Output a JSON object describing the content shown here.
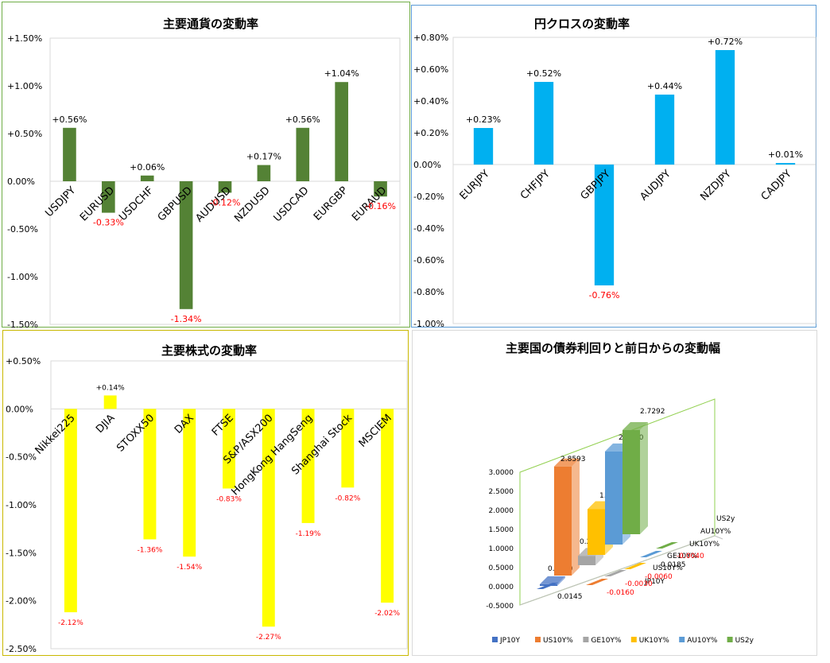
{
  "colors": {
    "currency_bar": "#548235",
    "cross_bar": "#00b0f0",
    "stock_bar": "#ffff00",
    "positive_label": "#000000",
    "negative_label": "#ff0000",
    "frame_green": "#70ad47",
    "frame_blue": "#5b9bd5",
    "frame_yellow": "#c9b800"
  },
  "chart_data": [
    {
      "type": "bar",
      "title": "主要通貨の変動率",
      "categories": [
        "USDJPY",
        "EURUSD",
        "USDCHF",
        "GBPUSD",
        "AUDUSD",
        "NZDUSD",
        "USDCAD",
        "EURGBP",
        "EURAUD"
      ],
      "values": [
        0.56,
        -0.33,
        0.06,
        -1.34,
        -0.12,
        0.17,
        0.56,
        1.04,
        -0.16
      ],
      "data_labels": [
        "+0.56%",
        "-0.33%",
        "+0.06%",
        "-1.34%",
        "-0.12%",
        "+0.17%",
        "+0.56%",
        "+1.04%",
        "-0.16%"
      ],
      "ylim": [
        -1.5,
        1.5
      ],
      "yticks": [
        1.5,
        1.0,
        0.5,
        0.0,
        -0.5,
        -1.0,
        -1.5
      ],
      "ytick_labels": [
        "+1.50%",
        "+1.00%",
        "+0.50%",
        "0.00%",
        "-0.50%",
        "-1.00%",
        "-1.50%"
      ],
      "grid": false,
      "legend": "none"
    },
    {
      "type": "bar",
      "title": "円クロスの変動率",
      "categories": [
        "EURJPY",
        "CHFJPY",
        "GBPJPY",
        "AUDJPY",
        "NZDJPY",
        "CADJPY"
      ],
      "values": [
        0.23,
        0.52,
        -0.76,
        0.44,
        0.72,
        0.01
      ],
      "data_labels": [
        "+0.23%",
        "+0.52%",
        "-0.76%",
        "+0.44%",
        "+0.72%",
        "+0.01%"
      ],
      "ylim": [
        -1.0,
        0.8
      ],
      "yticks": [
        0.8,
        0.6,
        0.4,
        0.2,
        0.0,
        -0.2,
        -0.4,
        -0.6,
        -0.8,
        -1.0
      ],
      "ytick_labels": [
        "+0.80%",
        "+0.60%",
        "+0.40%",
        "+0.20%",
        "0.00%",
        "-0.20%",
        "-0.40%",
        "-0.60%",
        "-0.80%",
        "-1.00%"
      ],
      "grid": false,
      "legend": "none"
    },
    {
      "type": "bar",
      "title": "主要株式の変動率",
      "categories": [
        "Nikkei225",
        "DJIA",
        "STOXX50",
        "DAX",
        "FTSE",
        "S&P/ASX200",
        "HongKong HangSeng",
        "Shanghai Stock",
        "MSCIEM"
      ],
      "values": [
        -2.12,
        0.14,
        -1.36,
        -1.54,
        -0.83,
        -2.27,
        -1.19,
        -0.82,
        -2.02
      ],
      "data_labels": [
        "-2.12%",
        "+0.14%",
        "-1.36%",
        "-1.54%",
        "-0.83%",
        "-2.27%",
        "-1.19%",
        "-0.82%",
        "-2.02%"
      ],
      "ylim": [
        -2.5,
        0.5
      ],
      "yticks": [
        0.5,
        0.0,
        -0.5,
        -1.0,
        -1.5,
        -2.0,
        -2.5
      ],
      "ytick_labels": [
        "+0.50%",
        "0.00%",
        "-0.50%",
        "-1.00%",
        "-1.50%",
        "-2.00%",
        "-2.50%"
      ],
      "grid": false,
      "legend": "none"
    },
    {
      "type": "bar",
      "title": "主要国の債券利回りと前日からの変動幅",
      "series": [
        {
          "name": "JP10Y",
          "color": "#4472c4",
          "values": [
            0.043,
            0.0145
          ],
          "labels": [
            "0.0430",
            "0.0145"
          ]
        },
        {
          "name": "US10Y%",
          "color": "#ed7d31",
          "values": [
            2.8593,
            -0.016
          ],
          "labels": [
            "2.8593",
            "-0.0160"
          ]
        },
        {
          "name": "GE10Y%",
          "color": "#a5a5a5",
          "values": [
            0.246,
            -0.003
          ],
          "labels": [
            "0.2460",
            "-0.0030"
          ]
        },
        {
          "name": "UK10Y%",
          "color": "#ffc000",
          "values": [
            1.199,
            -0.006
          ],
          "labels": [
            "1.1990",
            "-0.0060"
          ]
        },
        {
          "name": "AU10Y%",
          "color": "#5b9bd5",
          "values": [
            2.441,
            0.0185
          ],
          "labels": [
            "2.4410",
            "0.0185"
          ]
        },
        {
          "name": "US2y",
          "color": "#70ad47",
          "values": [
            2.7292,
            -0.004
          ],
          "labels": [
            "2.7292",
            "-0.0040"
          ]
        }
      ],
      "depth_labels": [
        "JP10Y",
        "US10Y%",
        "GE10Y%",
        "UK10Y%",
        "AU10Y%",
        "US2y"
      ],
      "ylim": [
        -0.5,
        3.0
      ],
      "yticks": [
        3.0,
        2.5,
        2.0,
        1.5,
        1.0,
        0.5,
        0.0,
        -0.5
      ],
      "ytick_labels": [
        "3.0000",
        "2.5000",
        "2.0000",
        "1.5000",
        "1.0000",
        "0.5000",
        "0.0000",
        "-0.5000"
      ],
      "legend": "bottom"
    }
  ]
}
